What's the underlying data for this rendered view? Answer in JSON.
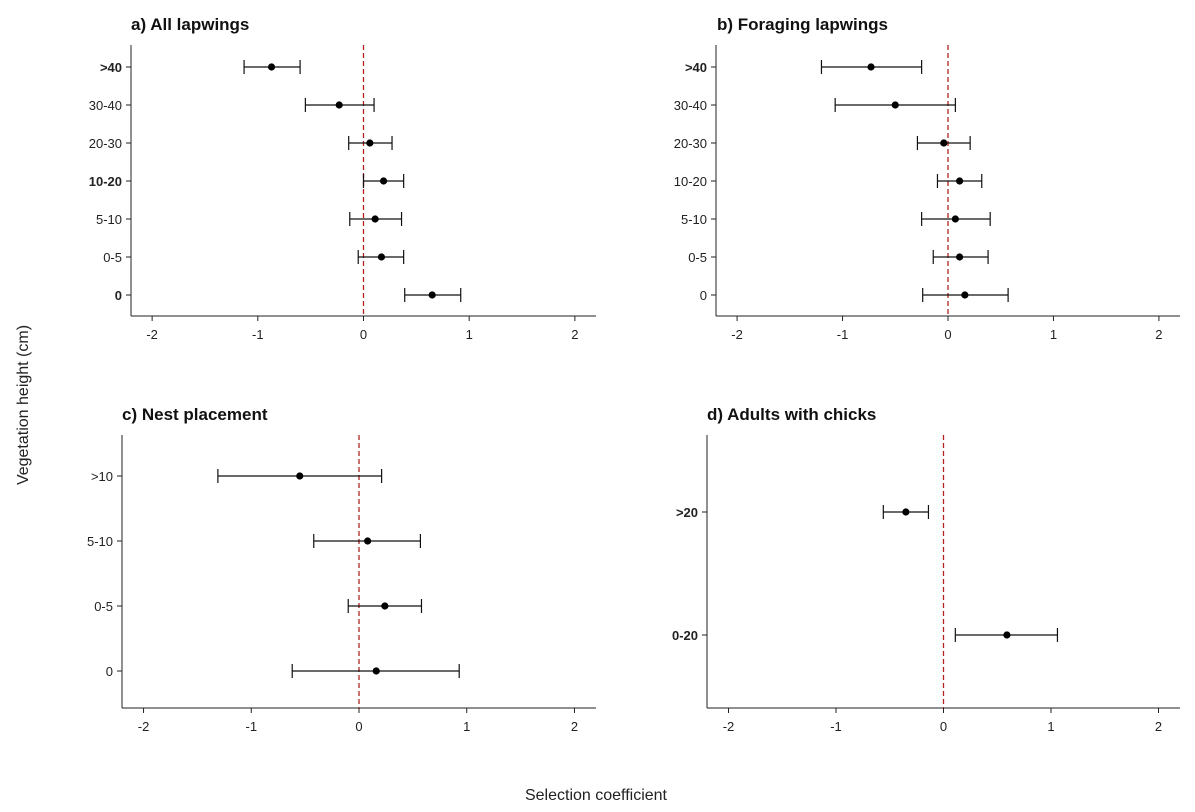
{
  "figure": {
    "xlabel": "Selection coefficient",
    "ylabel": "Vegetation height (cm)"
  },
  "chart_data": [
    {
      "type": "scatter",
      "title": "a) All lapwings",
      "xlim": [
        -2.2,
        2.2
      ],
      "xticks": [
        -2,
        -1,
        0,
        1,
        2
      ],
      "reference_line_x": 0,
      "categories": [
        "0",
        "0-5",
        "5-10",
        "10-20",
        "20-30",
        "30-40",
        ">40"
      ],
      "bold_categories": [
        "0",
        "10-20",
        ">40"
      ],
      "estimate": [
        0.65,
        0.17,
        0.11,
        0.19,
        0.06,
        -0.23,
        -0.87
      ],
      "lower": [
        0.39,
        -0.05,
        -0.13,
        0.0,
        -0.14,
        -0.55,
        -1.13
      ],
      "upper": [
        0.92,
        0.38,
        0.36,
        0.38,
        0.27,
        0.1,
        -0.6
      ]
    },
    {
      "type": "scatter",
      "title": "b) Foraging lapwings",
      "xlim": [
        -2.2,
        2.2
      ],
      "xticks": [
        -2,
        -1,
        0,
        1,
        2
      ],
      "reference_line_x": 0,
      "categories": [
        "0",
        "0-5",
        "5-10",
        "10-20",
        "20-30",
        "30-40",
        ">40"
      ],
      "bold_categories": [
        ">40"
      ],
      "estimate": [
        0.16,
        0.11,
        0.07,
        0.11,
        -0.04,
        -0.5,
        -0.73
      ],
      "lower": [
        -0.24,
        -0.14,
        -0.25,
        -0.1,
        -0.29,
        -1.07,
        -1.2
      ],
      "upper": [
        0.57,
        0.38,
        0.4,
        0.32,
        0.21,
        0.07,
        -0.25
      ]
    },
    {
      "type": "scatter",
      "title": "c) Nest placement",
      "xlim": [
        -2.2,
        2.2
      ],
      "xticks": [
        -2,
        -1,
        0,
        1,
        2
      ],
      "reference_line_x": 0,
      "categories": [
        "0",
        "0-5",
        "5-10",
        ">10"
      ],
      "bold_categories": [],
      "estimate": [
        0.16,
        0.24,
        0.08,
        -0.55
      ],
      "lower": [
        -0.62,
        -0.1,
        -0.42,
        -1.31
      ],
      "upper": [
        0.93,
        0.58,
        0.57,
        0.21
      ]
    },
    {
      "type": "scatter",
      "title": "d) Adults with chicks",
      "xlim": [
        -2.2,
        2.2
      ],
      "xticks": [
        -2,
        -1,
        0,
        1,
        2
      ],
      "reference_line_x": 0,
      "categories": [
        "0-20",
        ">20"
      ],
      "bold_categories": [
        "0-20",
        ">20"
      ],
      "estimate": [
        0.59,
        -0.35
      ],
      "lower": [
        0.11,
        -0.56
      ],
      "upper": [
        1.06,
        -0.14
      ]
    }
  ]
}
